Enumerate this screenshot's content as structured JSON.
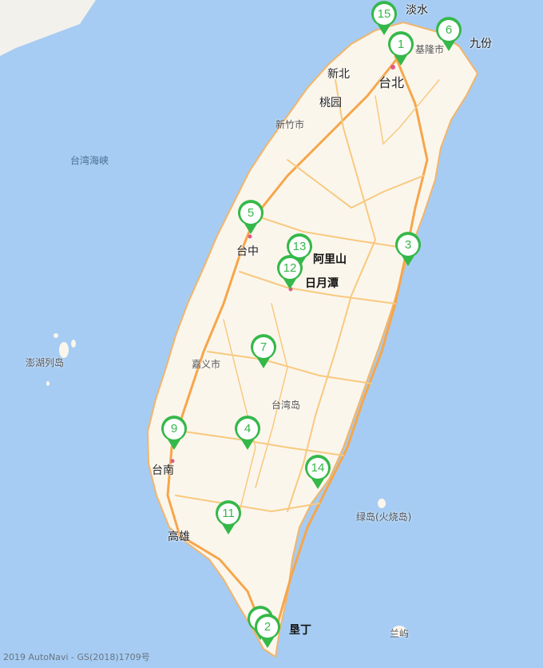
{
  "map": {
    "colors": {
      "sea": "#a6ccf3",
      "land": "#fbf6ec",
      "highway": "#f6a64a",
      "road": "#f8c97f",
      "marker": "#35b84a"
    },
    "labels": {
      "danshui": "淡水",
      "jiufen": "九份",
      "jilong": "基隆市",
      "xinbei": "新北",
      "taibei": "台北",
      "taoyuan": "桃园",
      "xinzhu": "新竹市",
      "taiwan_strait": "台湾海峡",
      "taizhong": "台中",
      "alishan": "阿里山",
      "riyuetan": "日月潭",
      "penghu": "澎湖列岛",
      "jiayi": "嘉义市",
      "taiwan_island": "台湾岛",
      "tainan": "台南",
      "gaoxiong": "高雄",
      "lüdao": "绿岛(火烧岛)",
      "kenting": "垦丁",
      "lanyu": "兰屿"
    },
    "markers": [
      "15",
      "1",
      "6",
      "5",
      "13",
      "12",
      "3",
      "7",
      "4",
      "9",
      "14",
      "11",
      "2"
    ],
    "copyright": "2019 AutoNavi - GS(2018)1709号"
  }
}
